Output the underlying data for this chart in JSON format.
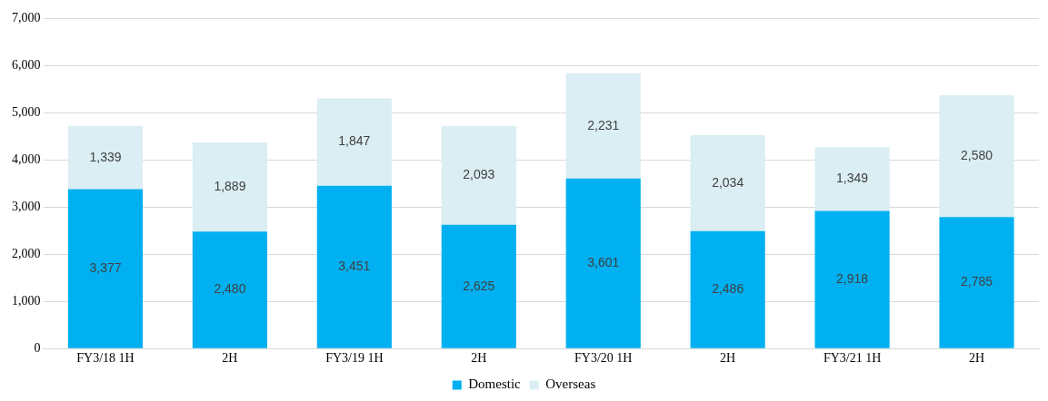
{
  "chart_data": {
    "type": "bar",
    "stacked": true,
    "categories": [
      "FY3/18 1H",
      "2H",
      "FY3/19 1H",
      "2H",
      "FY3/20 1H",
      "2H",
      "FY3/21 1H",
      "2H"
    ],
    "series": [
      {
        "name": "Domestic",
        "color": "#00b0f0",
        "values": [
          3377,
          2480,
          3451,
          2625,
          3601,
          2486,
          2918,
          2785
        ],
        "value_labels": [
          "3,377",
          "2,480",
          "3,451",
          "2,625",
          "3,601",
          "2,486",
          "2,918",
          "2,785"
        ]
      },
      {
        "name": "Overseas",
        "color": "#daeef3",
        "values": [
          1339,
          1889,
          1847,
          2093,
          2231,
          2034,
          1349,
          2580
        ],
        "value_labels": [
          "1,339",
          "1,889",
          "1,847",
          "2,093",
          "2,231",
          "2,034",
          "1,349",
          "2,580"
        ]
      }
    ],
    "ylim": [
      0,
      7000
    ],
    "yticks": [
      {
        "value": 0,
        "label": "0"
      },
      {
        "value": 1000,
        "label": "1,000"
      },
      {
        "value": 2000,
        "label": "2,000"
      },
      {
        "value": 3000,
        "label": "3,000"
      },
      {
        "value": 4000,
        "label": "4,000"
      },
      {
        "value": 5000,
        "label": "5,000"
      },
      {
        "value": 6000,
        "label": "6,000"
      },
      {
        "value": 7000,
        "label": "7,000"
      }
    ],
    "grid": "y",
    "legend": "bottom"
  }
}
